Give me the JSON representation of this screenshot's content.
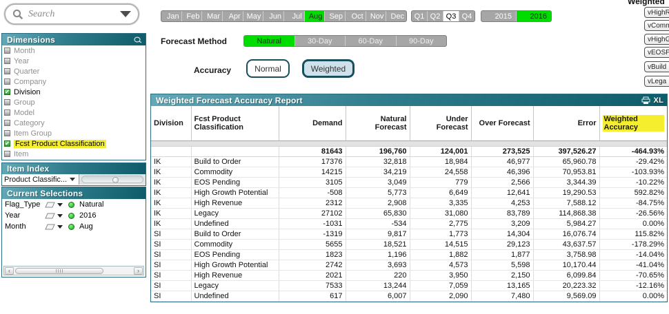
{
  "search": {
    "placeholder": "Search"
  },
  "filters": {
    "months": [
      "Jan",
      "Feb",
      "Mar",
      "Apr",
      "May",
      "Jun",
      "Jul",
      "Aug",
      "Sep",
      "Oct",
      "Nov",
      "Dec"
    ],
    "selected_month": "Aug",
    "quarters": [
      "Q1",
      "Q2",
      "Q3",
      "Q4"
    ],
    "selected_quarter": "Q3",
    "years": [
      "2015",
      "2016"
    ],
    "selected_year": "2016"
  },
  "forecast_method": {
    "label": "Forecast Method",
    "options": [
      "Natural",
      "30-Day",
      "60-Day",
      "90-Day"
    ],
    "selected": "Natural"
  },
  "accuracy": {
    "label": "Accuracy",
    "options": [
      "Normal",
      "Weighted"
    ],
    "selected": "Weighted"
  },
  "sidebar": {
    "dimensions": {
      "title": "Dimensions",
      "items": [
        {
          "label": "Month",
          "on": false,
          "hl": false
        },
        {
          "label": "Year",
          "on": false,
          "hl": false
        },
        {
          "label": "Quarter",
          "on": false,
          "hl": false
        },
        {
          "label": "Company",
          "on": false,
          "hl": false
        },
        {
          "label": "Division",
          "on": true,
          "hl": false
        },
        {
          "label": "Group",
          "on": false,
          "hl": false
        },
        {
          "label": "Model",
          "on": false,
          "hl": false
        },
        {
          "label": "Category",
          "on": false,
          "hl": false
        },
        {
          "label": "Item Group",
          "on": false,
          "hl": false
        },
        {
          "label": "Fcst Product Classification",
          "on": true,
          "hl": true
        },
        {
          "label": "Item",
          "on": false,
          "hl": false
        }
      ]
    },
    "item_index": {
      "title": "Item Index",
      "dropdown_value": "Product Classific..."
    },
    "current_selections": {
      "title": "Current Selections",
      "rows": [
        {
          "field": "Flag_Type",
          "value": "Natural"
        },
        {
          "field": "Year",
          "value": "2016"
        },
        {
          "field": "Month",
          "value": "Aug"
        }
      ]
    }
  },
  "report": {
    "title": "Weighted Forecast Accuracy Report",
    "export_label": "XL",
    "columns": [
      "Division",
      "Fcst Product Classification",
      "Demand",
      "Natural Forecast",
      "Under Forecast",
      "Over Forecast",
      "Error",
      "Weighted Accuracy"
    ],
    "totals": [
      "",
      "",
      "81643",
      "196,760",
      "124,001",
      "273,525",
      "397,526.27",
      "-464.93%"
    ],
    "rows": [
      [
        "IK",
        "Build to Order",
        "17376",
        "32,818",
        "18,984",
        "46,977",
        "65,960.78",
        "-29.42%"
      ],
      [
        "IK",
        "Commodity",
        "14215",
        "34,219",
        "24,558",
        "46,396",
        "70,953.81",
        "-103.93%"
      ],
      [
        "IK",
        "EOS Pending",
        "3105",
        "3,049",
        "779",
        "2,566",
        "3,344.39",
        "-10.22%"
      ],
      [
        "IK",
        "High Growth Potential",
        "-508",
        "5,773",
        "6,649",
        "12,641",
        "19,290.53",
        "592.82%"
      ],
      [
        "IK",
        "High Revenue",
        "2312",
        "2,908",
        "3,335",
        "4,253",
        "7,588.12",
        "-84.75%"
      ],
      [
        "IK",
        "Legacy",
        "27102",
        "65,830",
        "31,080",
        "83,789",
        "114,868.38",
        "-26.56%"
      ],
      [
        "IK",
        "Undefined",
        "-1031",
        "-534",
        "2,775",
        "3,209",
        "5,984.27",
        "0.00%"
      ],
      [
        "SI",
        "Build to Order",
        "-1319",
        "9,817",
        "1,773",
        "14,304",
        "16,076.74",
        "115.82%"
      ],
      [
        "SI",
        "Commodity",
        "5655",
        "18,521",
        "14,515",
        "29,123",
        "43,637.57",
        "-178.29%"
      ],
      [
        "SI",
        "EOS Pending",
        "1823",
        "1,196",
        "1,882",
        "1,877",
        "3,758.98",
        "-14.04%"
      ],
      [
        "SI",
        "High Growth Potential",
        "2742",
        "3,693",
        "4,573",
        "5,598",
        "10,170.44",
        "-41.04%"
      ],
      [
        "SI",
        "High Revenue",
        "2021",
        "220",
        "3,950",
        "2,150",
        "6,099.84",
        "-70.65%"
      ],
      [
        "SI",
        "Legacy",
        "7533",
        "13,244",
        "7,059",
        "13,165",
        "20,223.32",
        "-12.16%"
      ],
      [
        "SI",
        "Undefined",
        "617",
        "6,007",
        "2,090",
        "7,480",
        "9,569.09",
        "0.00%"
      ]
    ]
  },
  "right_edge": {
    "partial_title": "Weighted",
    "buttons": [
      "vHighR",
      "vComm",
      "vHighG",
      "vEOSP",
      "vBuild",
      "vLega"
    ]
  },
  "icons": {
    "search": "magnifier",
    "dropdown": "chevron-down",
    "clear_field": "eraser",
    "selection_state": "green-dot",
    "print": "printer",
    "export": "XL"
  },
  "colors": {
    "caption_teal": "#2f7c8c",
    "selected_green": "#00dc00",
    "highlight_yellow": "#f4ee2f",
    "weighted_button_bg": "#cfe2ec"
  }
}
